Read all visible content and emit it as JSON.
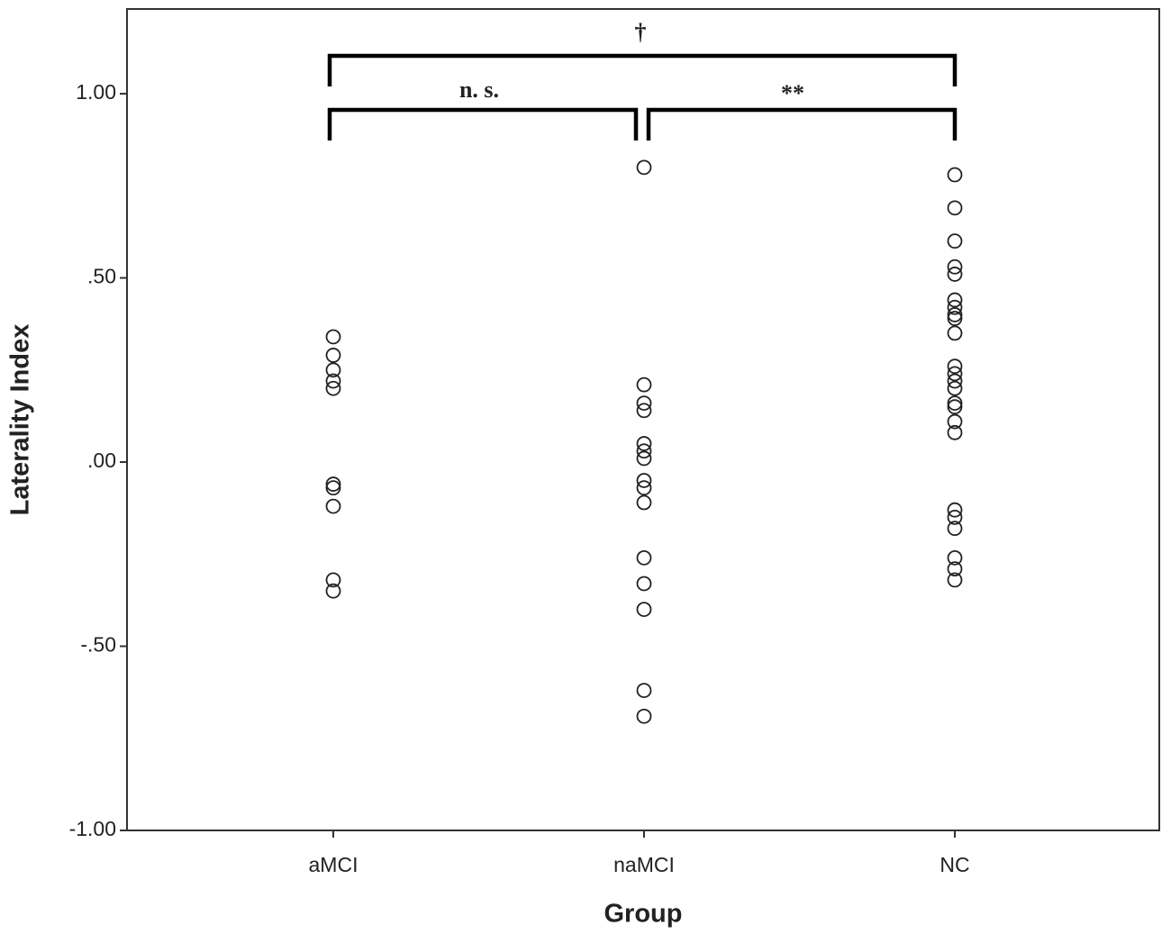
{
  "chart_data": {
    "type": "strip",
    "y_label": "Laterality Index",
    "x_label": "Group",
    "categories": [
      "aMCI",
      "naMCI",
      "NC"
    ],
    "values": [
      [
        0.34,
        0.29,
        0.25,
        0.22,
        0.2,
        -0.06,
        -0.07,
        -0.12,
        -0.32,
        -0.35
      ],
      [
        0.8,
        0.21,
        0.16,
        0.14,
        0.05,
        0.03,
        0.01,
        -0.05,
        -0.07,
        -0.11,
        -0.26,
        -0.33,
        -0.4,
        -0.62,
        -0.69
      ],
      [
        0.78,
        0.69,
        0.6,
        0.53,
        0.51,
        0.44,
        0.42,
        0.4,
        0.39,
        0.35,
        0.26,
        0.24,
        0.22,
        0.2,
        0.16,
        0.15,
        0.11,
        0.08,
        -0.13,
        -0.15,
        -0.18,
        -0.26,
        -0.29,
        -0.32
      ]
    ],
    "color": "#222222",
    "ylim": [
      -1.0,
      1.23
    ],
    "yticks": [
      {
        "value": 1.0,
        "label": "1.00"
      },
      {
        "value": 0.5,
        "label": ".50"
      },
      {
        "value": 0,
        "label": ".00"
      },
      {
        "value": -0.5,
        "label": "-.50"
      },
      {
        "value": -1.0,
        "label": "-1.00"
      }
    ],
    "annotations": [
      "†",
      "n. s.",
      "**"
    ]
  }
}
